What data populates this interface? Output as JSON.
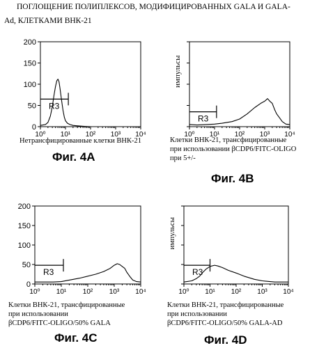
{
  "header": {
    "line1": "ПОГЛОЩЕНИЕ ПОЛИПЛЕКСОВ, МОДИФИЦИРОВАННЫХ GALA  И GALA-",
    "line2": "Ad,  КЛЕТКАМИ ВНК-21"
  },
  "chart_data": [
    {
      "type": "area",
      "panel": "4A",
      "ylabel": "",
      "xscale": "log",
      "xlim": [
        1,
        10000
      ],
      "ylim": [
        0,
        200
      ],
      "yticks": [
        "0",
        "50",
        "100",
        "150",
        "200"
      ],
      "xticks": [
        "10⁰",
        "10¹",
        "10²",
        "10³",
        "10⁴"
      ],
      "gate": {
        "label": "R3",
        "from": 1,
        "to": 13,
        "y": 65
      },
      "series": [
        {
          "x": [
            1.0,
            1.6,
            2.0,
            2.5,
            3.0,
            3.5,
            4.0,
            4.5,
            5.0,
            5.5,
            6.0,
            7.0,
            8.0,
            9.0,
            10.0,
            12.0,
            15.0,
            20.0,
            30.0,
            50.0,
            100.0
          ],
          "y": [
            3,
            5,
            10,
            25,
            48,
            75,
            95,
            108,
            112,
            106,
            92,
            62,
            38,
            22,
            14,
            8,
            5,
            3,
            2,
            1,
            0
          ]
        }
      ],
      "caption": [
        "Нетрансфицированные клетки ВНК-21"
      ],
      "figure_label": "Фиг. 4А"
    },
    {
      "type": "area",
      "panel": "4B",
      "ylabel": "импульсы",
      "xscale": "log",
      "xlim": [
        1,
        10000
      ],
      "ylim": [
        0,
        200
      ],
      "yticks": [],
      "xticks": [
        "10⁰",
        "10¹",
        "10²",
        "10³",
        "10⁴"
      ],
      "gate": {
        "label": "R3",
        "from": 1,
        "to": 12,
        "y": 35
      },
      "series": [
        {
          "x": [
            1.0,
            2.0,
            5.0,
            10.0,
            20.0,
            50.0,
            100.0,
            200.0,
            400.0,
            700.0,
            1000.0,
            1300.0,
            1600.0,
            2000.0,
            2500.0,
            3000.0,
            4000.0,
            5000.0,
            7000.0,
            10000.0
          ],
          "y": [
            5,
            4,
            5,
            6,
            8,
            12,
            18,
            30,
            45,
            55,
            60,
            66,
            60,
            55,
            40,
            30,
            20,
            12,
            6,
            5
          ]
        }
      ],
      "caption": [
        "Клетки ВНК-21, трансфицированные",
        "при использовании  βCDP6/FITC-OLIGO",
        "при 5+/-"
      ],
      "figure_label": "Фиг. 4В"
    },
    {
      "type": "area",
      "panel": "4C",
      "ylabel": "",
      "xscale": "log",
      "xlim": [
        1,
        10000
      ],
      "ylim": [
        0,
        200
      ],
      "yticks": [
        "0",
        "50",
        "100",
        "150",
        "200"
      ],
      "xticks": [
        "10⁰",
        "10¹",
        "10²",
        "10³",
        "10⁴"
      ],
      "gate": {
        "label": "R3",
        "from": 1,
        "to": 12,
        "y": 48
      },
      "series": [
        {
          "x": [
            1.0,
            2.0,
            5.0,
            10.0,
            20.0,
            50.0,
            100.0,
            200.0,
            400.0,
            700.0,
            1000.0,
            1300.0,
            1600.0,
            2000.0,
            2500.0,
            3000.0,
            4000.0,
            5000.0,
            7000.0,
            10000.0
          ],
          "y": [
            5,
            5,
            5,
            6,
            10,
            15,
            20,
            25,
            32,
            40,
            48,
            52,
            50,
            45,
            40,
            30,
            18,
            10,
            6,
            5
          ]
        }
      ],
      "caption": [
        "Клетки ВНК-21, трансфицированные",
        "при использовании",
        "βCDP6/FITC-OLIGO/50% GALA"
      ],
      "figure_label": "Фиг. 4С"
    },
    {
      "type": "area",
      "panel": "4D",
      "ylabel": "импульсы",
      "xscale": "log",
      "xlim": [
        1,
        10000
      ],
      "ylim": [
        0,
        200
      ],
      "yticks": [],
      "xticks": [
        "10⁰",
        "10¹",
        "10²",
        "10³",
        "10⁴"
      ],
      "gate": {
        "label": "R3",
        "from": 1,
        "to": 10,
        "y": 48
      },
      "series": [
        {
          "x": [
            1.0,
            2.0,
            3.0,
            4.0,
            5.0,
            7.0,
            10.0,
            15.0,
            20.0,
            30.0,
            50.0,
            100.0,
            200.0,
            500.0,
            1000.0,
            2000.0,
            3000.0,
            5000.0,
            7000.0,
            10000.0
          ],
          "y": [
            5,
            8,
            14,
            20,
            28,
            38,
            45,
            48,
            46,
            42,
            35,
            28,
            20,
            12,
            8,
            6,
            5,
            5,
            5,
            5
          ]
        }
      ],
      "caption": [
        "Клетки ВНК-21, трансфицированные",
        "при использовании",
        "βCDP6/FITC-OLIGO/50% GALA-AD"
      ],
      "figure_label": "Фиг. 4D"
    }
  ]
}
